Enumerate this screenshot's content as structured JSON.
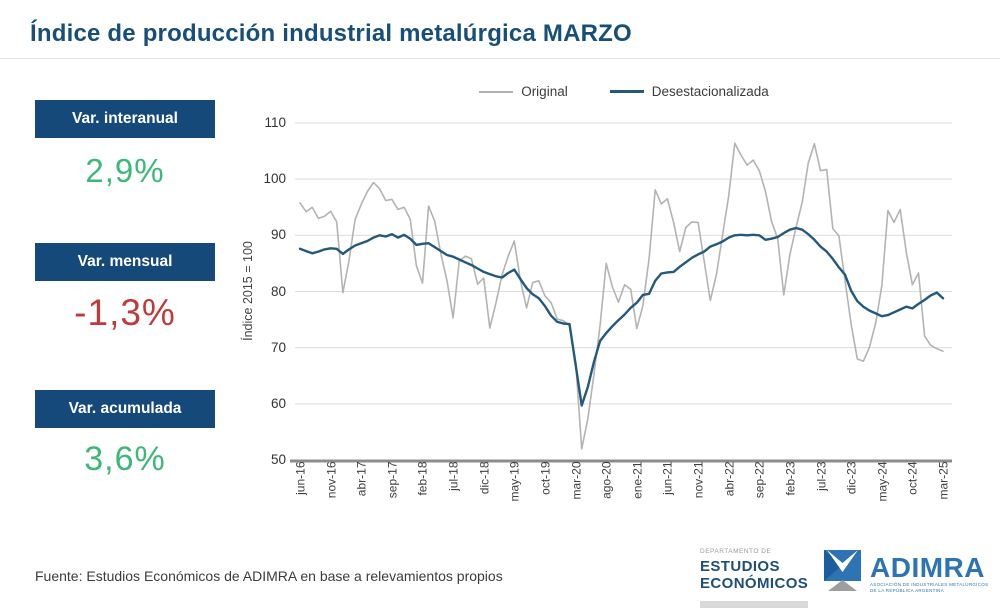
{
  "title": "Índice de producción industrial metalúrgica MARZO",
  "stats": [
    {
      "label": "Var. interanual",
      "value": "2,9%",
      "color": "#3cb878"
    },
    {
      "label": "Var. mensual",
      "value": "-1,3%",
      "color": "#bf3b3b"
    },
    {
      "label": "Var. acumulada",
      "value": "3,6%",
      "color": "#3cb878"
    }
  ],
  "colors": {
    "title": "#174f78",
    "stat_box_bg": "#15497a",
    "grid": "#dcdcdc",
    "axis": "#8c8c8c",
    "tick_text": "#404040",
    "adimra_blue": "#2e74b5",
    "dept_navy": "#1f4e79"
  },
  "chart_data": {
    "type": "line",
    "title": "",
    "xlabel": "",
    "ylabel": "Índice 2015 = 100",
    "ylim": [
      50,
      110
    ],
    "yticks": [
      110,
      100,
      90,
      80,
      70,
      60,
      50
    ],
    "grid": true,
    "legend_position": "top-center",
    "x_start": "jun-16",
    "x_end": "mar-25",
    "months_total": 106,
    "x_tick_step_months": 5,
    "x_tick_labels": [
      "jun-16",
      "nov-16",
      "abr-17",
      "sep-17",
      "feb-18",
      "jul-18",
      "dic-18",
      "may-19",
      "oct-19",
      "mar-20",
      "ago-20",
      "ene-21",
      "jun-21",
      "nov-21",
      "abr-22",
      "sep-22",
      "feb-23",
      "jul-23",
      "dic-23",
      "may-24",
      "oct-24",
      "mar-25"
    ],
    "series": [
      {
        "name": "Original",
        "color": "#b3b3b3",
        "width": 1.6,
        "values": [
          95.8,
          94.2,
          95.0,
          93.0,
          93.4,
          94.3,
          92.4,
          79.8,
          85.5,
          92.8,
          95.5,
          97.8,
          99.4,
          98.3,
          96.2,
          96.4,
          94.6,
          95.0,
          92.9,
          84.6,
          81.5,
          95.2,
          92.5,
          86.7,
          81.9,
          75.3,
          85.4,
          86.3,
          85.8,
          81.3,
          82.4,
          73.5,
          78.0,
          83.0,
          86.3,
          89.0,
          81.9,
          77.1,
          81.6,
          81.9,
          79.2,
          78.0,
          75.1,
          74.8,
          73.9,
          67.6,
          52.0,
          57.3,
          65.3,
          74.0,
          85.0,
          80.9,
          78.1,
          81.2,
          80.4,
          73.4,
          77.5,
          85.9,
          98.1,
          95.6,
          96.5,
          92.3,
          87.1,
          91.4,
          92.4,
          92.3,
          85.4,
          78.4,
          83.0,
          90.1,
          97.0,
          106.4,
          104.3,
          102.5,
          103.4,
          101.5,
          97.9,
          92.5,
          89.4,
          79.4,
          86.6,
          91.4,
          95.9,
          102.9,
          106.3,
          101.5,
          101.7,
          91.2,
          89.9,
          82.0,
          74.1,
          68.0,
          67.6,
          70.1,
          74.4,
          81.0,
          94.4,
          92.3,
          94.6,
          87.0,
          81.2,
          83.3,
          72.1,
          70.4,
          69.8,
          69.4
        ]
      },
      {
        "name": "Desestacionalizada",
        "color": "#24597b",
        "width": 2.4,
        "values": [
          87.6,
          87.2,
          86.8,
          87.1,
          87.5,
          87.7,
          87.6,
          86.7,
          87.5,
          88.2,
          88.6,
          89.0,
          89.6,
          90.0,
          89.8,
          90.2,
          89.6,
          90.1,
          89.4,
          88.3,
          88.5,
          88.6,
          87.9,
          87.2,
          86.5,
          86.2,
          85.7,
          85.2,
          84.7,
          84.1,
          83.5,
          83.1,
          82.7,
          82.5,
          83.3,
          83.9,
          82.2,
          80.6,
          79.5,
          78.8,
          77.4,
          75.7,
          74.6,
          74.3,
          74.2,
          67.0,
          59.7,
          63.0,
          67.5,
          71.2,
          72.6,
          73.8,
          74.9,
          75.9,
          77.1,
          78.0,
          79.4,
          79.6,
          81.9,
          83.2,
          83.4,
          83.5,
          84.4,
          85.2,
          86.0,
          86.6,
          87.1,
          88.0,
          88.4,
          88.9,
          89.6,
          90.0,
          90.1,
          90.0,
          90.1,
          90.0,
          89.2,
          89.4,
          89.7,
          90.4,
          91.0,
          91.3,
          91.0,
          90.2,
          89.2,
          88.0,
          87.1,
          85.8,
          84.3,
          83.0,
          80.1,
          78.3,
          77.3,
          76.6,
          76.1,
          75.6,
          75.8,
          76.3,
          76.8,
          77.3,
          77.0,
          77.8,
          78.5,
          79.3,
          79.8,
          78.8
        ]
      }
    ]
  },
  "footer": {
    "source": "Fuente: Estudios Económicos de ADIMRA en base a relevamientos propios"
  },
  "logos": {
    "dept_line1": "DEPARTAMENTO DE",
    "dept_line2": "ESTUDIOS",
    "dept_line3": "ECONÓMICOS",
    "adimra_name": "ADIMRA",
    "adimra_tagline1": "ASOCIACIÓN DE INDUSTRIALES METALÚRGICOS",
    "adimra_tagline2": "DE LA REPÚBLICA ARGENTINA"
  }
}
